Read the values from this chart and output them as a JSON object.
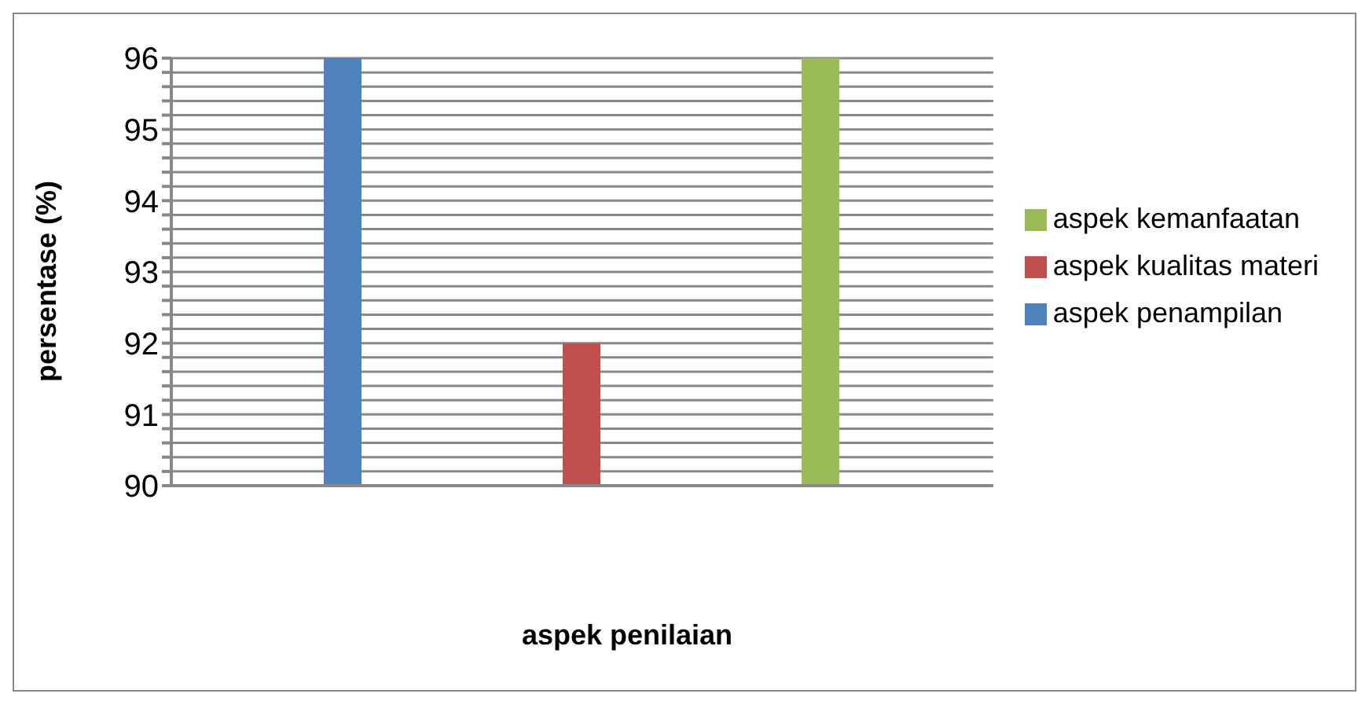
{
  "chart_data": {
    "type": "bar",
    "ylabel": "persentase (%)",
    "xlabel": "aspek penilaian",
    "categories": [
      null
    ],
    "series": [
      {
        "name": "aspek penampilan",
        "color": "#4f81bd",
        "values": [
          96
        ]
      },
      {
        "name": "aspek kualitas materi",
        "color": "#c0504d",
        "values": [
          92
        ]
      },
      {
        "name": "aspek kemanfaatan",
        "color": "#9bbb59",
        "values": [
          96
        ]
      }
    ],
    "ylim": [
      90,
      96
    ],
    "yticks": [
      90,
      {
        "value": 90.2,
        "label": null
      },
      {
        "value": 90.4,
        "label": null
      },
      {
        "value": 90.6,
        "label": null
      },
      {
        "value": 90.8,
        "label": null
      },
      91,
      {
        "value": 91.2,
        "label": null
      },
      {
        "value": 91.4,
        "label": null
      },
      {
        "value": 91.6,
        "label": null
      },
      {
        "value": 91.8,
        "label": null
      },
      92,
      {
        "value": 92.2,
        "label": null
      },
      {
        "value": 92.4,
        "label": null
      },
      {
        "value": 92.6,
        "label": null
      },
      {
        "value": 92.8,
        "label": null
      },
      93,
      {
        "value": 93.2,
        "label": null
      },
      {
        "value": 93.4,
        "label": null
      },
      {
        "value": 93.6,
        "label": null
      },
      {
        "value": 93.8,
        "label": null
      },
      94,
      {
        "value": 94.2,
        "label": null
      },
      {
        "value": 94.4,
        "label": null
      },
      {
        "value": 94.6,
        "label": null
      },
      {
        "value": 94.8,
        "label": null
      },
      95,
      {
        "value": 95.2,
        "label": null
      },
      {
        "value": 95.4,
        "label": null
      },
      {
        "value": 95.6,
        "label": null
      },
      {
        "value": 95.8,
        "label": null
      },
      96
    ],
    "grid": "y",
    "legend": "right"
  }
}
